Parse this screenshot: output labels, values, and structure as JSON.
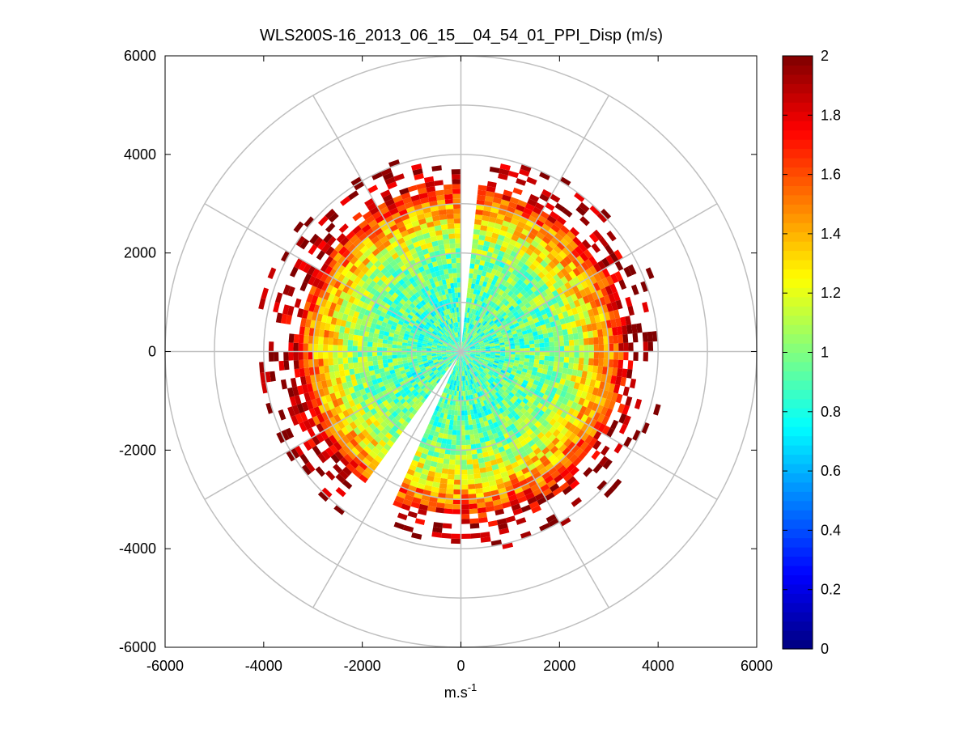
{
  "chart_data": {
    "type": "heatmap",
    "subtype": "polar-ppi",
    "title": "WLS200S-16_2013_06_15__04_54_01_PPI_Disp (m/s)",
    "xlabel": "m.s",
    "xlabel_superscript": "-1",
    "ylabel": "",
    "xlim": [
      -6000,
      6000
    ],
    "ylim": [
      -6000,
      6000
    ],
    "xticks": [
      -6000,
      -4000,
      -2000,
      0,
      2000,
      4000,
      6000
    ],
    "yticks": [
      -6000,
      -4000,
      -2000,
      0,
      2000,
      4000,
      6000
    ],
    "xtick_labels": [
      "-6000",
      "-4000",
      "-2000",
      "0",
      "2000",
      "4000",
      "6000"
    ],
    "ytick_labels": [
      "-6000",
      "-4000",
      "-2000",
      "0",
      "2000",
      "4000",
      "6000"
    ],
    "grid": true,
    "polar_grid": {
      "ring_radii": [
        1000,
        2000,
        3000,
        4000,
        5000,
        6000
      ],
      "spoke_angles_deg": [
        0,
        30,
        60,
        90,
        120,
        150,
        180,
        210,
        240,
        270,
        300,
        330
      ]
    },
    "colorbar": {
      "colormap": "jet",
      "clim": [
        0,
        2
      ],
      "ticks": [
        0,
        0.2,
        0.4,
        0.6,
        0.8,
        1,
        1.2,
        1.4,
        1.6,
        1.8,
        2
      ],
      "tick_labels": [
        "0",
        "0.2",
        "0.4",
        "0.6",
        "0.8",
        "1",
        "1.2",
        "1.4",
        "1.6",
        "1.8",
        "2"
      ]
    },
    "data_coverage": {
      "max_range_m": 4500,
      "gaps_azimuth_deg": [
        [
          0,
          6
        ],
        [
          205,
          215
        ]
      ],
      "radial_profile": [
        {
          "range_m": 1000,
          "disp_ms": 0.9
        },
        {
          "range_m": 2000,
          "disp_ms": 1.0
        },
        {
          "range_m": 2500,
          "disp_ms": 1.2
        },
        {
          "range_m": 3000,
          "disp_ms": 1.5
        },
        {
          "range_m": 3500,
          "disp_ms": 1.9
        },
        {
          "range_m": 4000,
          "disp_ms": 2.0
        }
      ]
    }
  }
}
